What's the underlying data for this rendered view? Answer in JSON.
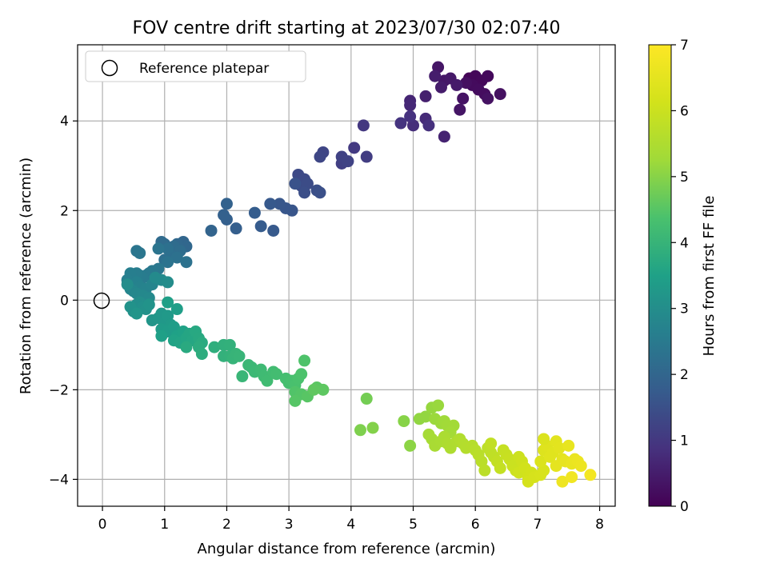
{
  "chart_data": {
    "type": "scatter",
    "title": "FOV centre drift starting at 2023/07/30 02:07:40",
    "xlabel": "Angular distance from reference (arcmin)",
    "ylabel": "Rotation from reference (arcmin)",
    "xlim": [
      -0.4,
      8.25
    ],
    "ylim": [
      -4.6,
      5.7
    ],
    "xticks": [
      0,
      1,
      2,
      3,
      4,
      5,
      6,
      7,
      8
    ],
    "yticks": [
      -4,
      -2,
      0,
      2,
      4
    ],
    "grid": true,
    "legend": {
      "position": "top-left",
      "entries": [
        "Reference platepar"
      ]
    },
    "reference": {
      "x": 0,
      "y": 0,
      "label": "Reference platepar"
    },
    "colorbar": {
      "label": "Hours from first FF file",
      "range": [
        0,
        7
      ],
      "ticks": [
        0,
        1,
        2,
        3,
        4,
        5,
        6,
        7
      ],
      "colormap": "viridis"
    },
    "points": [
      [
        5.9,
        4.95,
        0.05
      ],
      [
        6.0,
        5.0,
        0.1
      ],
      [
        6.1,
        4.9,
        0.12
      ],
      [
        6.2,
        5.0,
        0.15
      ],
      [
        5.95,
        4.8,
        0.18
      ],
      [
        6.05,
        4.7,
        0.2
      ],
      [
        6.15,
        4.6,
        0.22
      ],
      [
        5.85,
        4.85,
        0.25
      ],
      [
        6.4,
        4.6,
        0.28
      ],
      [
        6.2,
        4.5,
        0.3
      ],
      [
        5.8,
        4.5,
        0.33
      ],
      [
        5.75,
        4.25,
        0.35
      ],
      [
        5.4,
        5.2,
        0.38
      ],
      [
        5.5,
        4.9,
        0.4
      ],
      [
        5.6,
        4.95,
        0.42
      ],
      [
        5.7,
        4.8,
        0.45
      ],
      [
        5.45,
        4.75,
        0.48
      ],
      [
        5.35,
        5.0,
        0.5
      ],
      [
        5.2,
        4.55,
        0.55
      ],
      [
        5.5,
        3.65,
        0.6
      ],
      [
        4.95,
        4.45,
        0.65
      ],
      [
        4.95,
        4.35,
        0.7
      ],
      [
        5.2,
        4.05,
        0.75
      ],
      [
        5.0,
        3.9,
        0.8
      ],
      [
        5.25,
        3.9,
        0.85
      ],
      [
        4.95,
        4.1,
        0.88
      ],
      [
        4.8,
        3.95,
        0.92
      ],
      [
        4.2,
        3.9,
        1.0
      ],
      [
        4.05,
        3.4,
        1.05
      ],
      [
        4.25,
        3.2,
        1.1
      ],
      [
        3.85,
        3.05,
        1.15
      ],
      [
        3.9,
        3.1,
        1.18
      ],
      [
        3.85,
        3.2,
        1.2
      ],
      [
        3.95,
        3.1,
        1.22
      ],
      [
        3.55,
        3.3,
        1.28
      ],
      [
        3.5,
        3.2,
        1.3
      ],
      [
        3.15,
        2.8,
        1.35
      ],
      [
        3.25,
        2.7,
        1.38
      ],
      [
        3.2,
        2.55,
        1.4
      ],
      [
        3.3,
        2.6,
        1.42
      ],
      [
        3.25,
        2.4,
        1.45
      ],
      [
        3.45,
        2.45,
        1.48
      ],
      [
        3.5,
        2.4,
        1.5
      ],
      [
        3.1,
        2.6,
        1.55
      ],
      [
        3.05,
        2.0,
        1.6
      ],
      [
        2.95,
        2.05,
        1.62
      ],
      [
        2.85,
        2.15,
        1.65
      ],
      [
        2.7,
        2.15,
        1.68
      ],
      [
        2.75,
        1.55,
        1.7
      ],
      [
        2.55,
        1.65,
        1.75
      ],
      [
        2.45,
        1.95,
        1.78
      ],
      [
        2.15,
        1.6,
        1.82
      ],
      [
        2.0,
        1.8,
        1.85
      ],
      [
        1.95,
        1.9,
        1.88
      ],
      [
        2.0,
        2.15,
        1.9
      ],
      [
        1.75,
        1.55,
        1.95
      ],
      [
        1.3,
        1.3,
        2.0
      ],
      [
        1.35,
        1.2,
        2.02
      ],
      [
        1.2,
        1.25,
        2.05
      ],
      [
        1.1,
        1.1,
        2.08
      ],
      [
        1.0,
        1.25,
        2.1
      ],
      [
        0.95,
        1.3,
        2.12
      ],
      [
        1.15,
        1.2,
        2.15
      ],
      [
        1.25,
        1.1,
        2.18
      ],
      [
        1.1,
        1.0,
        2.2
      ],
      [
        1.0,
        0.9,
        2.22
      ],
      [
        1.05,
        1.15,
        2.25
      ],
      [
        1.2,
        0.95,
        2.28
      ],
      [
        1.35,
        0.85,
        2.3
      ],
      [
        1.05,
        0.85,
        2.32
      ],
      [
        0.9,
        1.15,
        2.35
      ],
      [
        0.55,
        1.1,
        2.38
      ],
      [
        0.6,
        1.05,
        2.4
      ],
      [
        0.9,
        0.7,
        2.42
      ],
      [
        0.8,
        0.65,
        2.45
      ],
      [
        0.75,
        0.6,
        2.48
      ],
      [
        0.7,
        0.55,
        2.5
      ],
      [
        0.65,
        0.5,
        2.52
      ],
      [
        0.6,
        0.55,
        2.55
      ],
      [
        0.55,
        0.6,
        2.58
      ],
      [
        0.45,
        0.6,
        2.6
      ],
      [
        0.4,
        0.45,
        2.62
      ],
      [
        0.5,
        0.35,
        2.65
      ],
      [
        0.55,
        0.4,
        2.68
      ],
      [
        0.6,
        0.3,
        2.7
      ],
      [
        0.7,
        0.25,
        2.72
      ],
      [
        0.8,
        0.35,
        2.75
      ],
      [
        0.45,
        0.25,
        2.78
      ],
      [
        0.5,
        0.2,
        2.8
      ],
      [
        0.55,
        0.15,
        2.82
      ],
      [
        0.65,
        0.1,
        2.85
      ],
      [
        0.75,
        0.05,
        2.88
      ],
      [
        0.85,
        0.5,
        2.9
      ],
      [
        0.95,
        0.45,
        2.92
      ],
      [
        1.05,
        0.4,
        2.95
      ],
      [
        0.4,
        0.35,
        2.98
      ],
      [
        0.6,
        -0.05,
        3.0
      ],
      [
        0.55,
        -0.1,
        3.02
      ],
      [
        0.65,
        -0.15,
        3.05
      ],
      [
        0.7,
        -0.2,
        3.08
      ],
      [
        0.5,
        -0.25,
        3.1
      ],
      [
        0.45,
        -0.15,
        3.12
      ],
      [
        0.75,
        -0.1,
        3.15
      ],
      [
        0.55,
        -0.3,
        3.18
      ],
      [
        0.8,
        -0.45,
        3.2
      ],
      [
        0.9,
        -0.4,
        3.22
      ],
      [
        0.95,
        -0.3,
        3.25
      ],
      [
        1.0,
        -0.5,
        3.28
      ],
      [
        1.05,
        -0.35,
        3.3
      ],
      [
        1.1,
        -0.55,
        3.32
      ],
      [
        0.95,
        -0.65,
        3.35
      ],
      [
        1.05,
        -0.7,
        3.38
      ],
      [
        1.15,
        -0.6,
        3.4
      ],
      [
        1.2,
        -0.2,
        3.42
      ],
      [
        1.05,
        -0.05,
        3.45
      ],
      [
        0.95,
        -0.8,
        3.48
      ],
      [
        1.2,
        -0.8,
        3.5
      ],
      [
        1.3,
        -0.7,
        3.52
      ],
      [
        1.15,
        -0.9,
        3.55
      ],
      [
        1.25,
        -0.95,
        3.58
      ],
      [
        1.35,
        -0.85,
        3.6
      ],
      [
        1.4,
        -0.75,
        3.62
      ],
      [
        1.45,
        -0.9,
        3.65
      ],
      [
        1.5,
        -0.7,
        3.68
      ],
      [
        1.55,
        -0.85,
        3.7
      ],
      [
        1.35,
        -1.05,
        3.72
      ],
      [
        1.6,
        -0.95,
        3.75
      ],
      [
        1.55,
        -1.05,
        3.78
      ],
      [
        1.6,
        -1.2,
        3.8
      ],
      [
        1.8,
        -1.05,
        3.85
      ],
      [
        1.95,
        -1.0,
        3.88
      ],
      [
        2.05,
        -1.0,
        3.9
      ],
      [
        1.95,
        -1.25,
        3.92
      ],
      [
        2.05,
        -1.25,
        3.95
      ],
      [
        2.1,
        -1.3,
        3.98
      ],
      [
        2.15,
        -1.2,
        4.0
      ],
      [
        2.2,
        -1.25,
        4.02
      ],
      [
        2.25,
        -1.7,
        4.05
      ],
      [
        2.35,
        -1.45,
        4.08
      ],
      [
        2.4,
        -1.5,
        4.1
      ],
      [
        2.45,
        -1.6,
        4.12
      ],
      [
        2.55,
        -1.55,
        4.15
      ],
      [
        2.6,
        -1.7,
        4.18
      ],
      [
        2.65,
        -1.8,
        4.2
      ],
      [
        2.75,
        -1.6,
        4.22
      ],
      [
        2.8,
        -1.65,
        4.25
      ],
      [
        2.95,
        -1.75,
        4.28
      ],
      [
        3.0,
        -1.85,
        4.3
      ],
      [
        3.05,
        -1.8,
        4.32
      ],
      [
        3.1,
        -1.9,
        4.35
      ],
      [
        3.15,
        -1.75,
        4.38
      ],
      [
        3.2,
        -1.65,
        4.4
      ],
      [
        3.25,
        -1.35,
        4.42
      ],
      [
        3.1,
        -2.05,
        4.45
      ],
      [
        3.2,
        -2.1,
        4.48
      ],
      [
        3.1,
        -2.25,
        4.5
      ],
      [
        3.3,
        -2.15,
        4.52
      ],
      [
        3.45,
        -1.95,
        4.55
      ],
      [
        3.55,
        -2.0,
        4.58
      ],
      [
        3.4,
        -2.0,
        4.6
      ],
      [
        4.25,
        -2.2,
        4.8
      ],
      [
        4.15,
        -2.9,
        4.9
      ],
      [
        4.35,
        -2.85,
        4.95
      ],
      [
        4.85,
        -2.7,
        5.0
      ],
      [
        4.95,
        -3.25,
        5.05
      ],
      [
        5.1,
        -2.65,
        5.1
      ],
      [
        5.2,
        -2.6,
        5.12
      ],
      [
        5.3,
        -2.4,
        5.15
      ],
      [
        5.4,
        -2.35,
        5.18
      ],
      [
        5.35,
        -2.65,
        5.2
      ],
      [
        5.45,
        -2.75,
        5.22
      ],
      [
        5.5,
        -2.7,
        5.25
      ],
      [
        5.55,
        -2.8,
        5.28
      ],
      [
        5.65,
        -2.8,
        5.3
      ],
      [
        5.6,
        -2.95,
        5.32
      ],
      [
        5.25,
        -3.0,
        5.35
      ],
      [
        5.3,
        -3.1,
        5.38
      ],
      [
        5.35,
        -3.25,
        5.4
      ],
      [
        5.45,
        -3.15,
        5.42
      ],
      [
        5.5,
        -3.05,
        5.45
      ],
      [
        5.55,
        -3.2,
        5.48
      ],
      [
        5.6,
        -3.3,
        5.5
      ],
      [
        5.7,
        -3.15,
        5.52
      ],
      [
        5.75,
        -3.1,
        5.55
      ],
      [
        5.8,
        -3.2,
        5.58
      ],
      [
        5.85,
        -3.3,
        5.6
      ],
      [
        5.95,
        -3.25,
        5.62
      ],
      [
        6.0,
        -3.35,
        5.65
      ],
      [
        6.05,
        -3.45,
        5.68
      ],
      [
        6.1,
        -3.6,
        5.7
      ],
      [
        6.15,
        -3.8,
        5.72
      ],
      [
        6.2,
        -3.3,
        5.75
      ],
      [
        6.25,
        -3.4,
        5.78
      ],
      [
        6.3,
        -3.5,
        5.8
      ],
      [
        6.25,
        -3.2,
        5.82
      ],
      [
        6.35,
        -3.6,
        5.85
      ],
      [
        6.4,
        -3.75,
        5.88
      ],
      [
        6.45,
        -3.35,
        5.9
      ],
      [
        6.5,
        -3.45,
        5.92
      ],
      [
        6.55,
        -3.55,
        5.95
      ],
      [
        6.6,
        -3.7,
        5.98
      ],
      [
        6.65,
        -3.8,
        6.0
      ],
      [
        6.7,
        -3.5,
        6.02
      ],
      [
        6.75,
        -3.6,
        6.05
      ],
      [
        6.7,
        -3.85,
        6.08
      ],
      [
        6.8,
        -3.75,
        6.1
      ],
      [
        6.85,
        -3.95,
        6.12
      ],
      [
        6.9,
        -3.85,
        6.15
      ],
      [
        6.85,
        -4.05,
        6.18
      ],
      [
        6.95,
        -3.95,
        6.2
      ],
      [
        7.05,
        -3.9,
        6.22
      ],
      [
        7.1,
        -3.8,
        6.25
      ],
      [
        7.05,
        -3.6,
        6.3
      ],
      [
        7.1,
        -3.35,
        6.35
      ],
      [
        7.15,
        -3.25,
        6.38
      ],
      [
        7.2,
        -3.5,
        6.4
      ],
      [
        7.25,
        -3.4,
        6.42
      ],
      [
        7.3,
        -3.15,
        6.45
      ],
      [
        7.35,
        -3.3,
        6.48
      ],
      [
        7.4,
        -3.55,
        6.5
      ],
      [
        7.3,
        -3.7,
        6.52
      ],
      [
        7.45,
        -3.6,
        6.55
      ],
      [
        7.5,
        -3.25,
        6.58
      ],
      [
        7.55,
        -3.65,
        6.6
      ],
      [
        7.6,
        -3.55,
        6.62
      ],
      [
        7.65,
        -3.6,
        6.65
      ],
      [
        7.7,
        -3.7,
        6.68
      ],
      [
        7.4,
        -4.05,
        6.7
      ],
      [
        7.55,
        -3.95,
        6.75
      ],
      [
        7.85,
        -3.9,
        6.8
      ],
      [
        7.1,
        -3.1,
        6.3
      ]
    ]
  }
}
